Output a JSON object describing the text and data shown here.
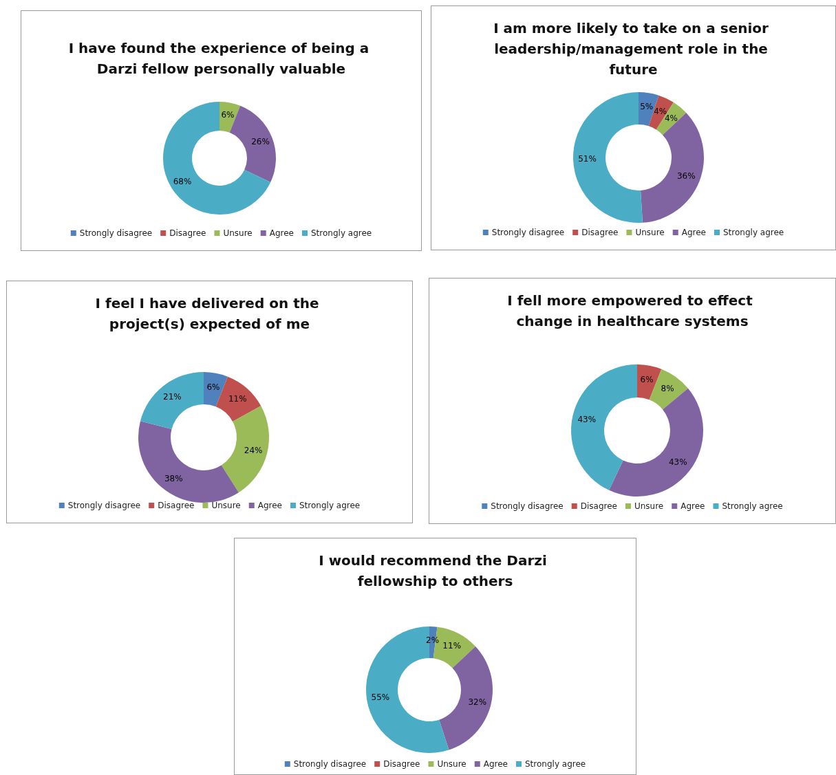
{
  "chart_data": [
    {
      "type": "donut",
      "title": "I have found the experience of being a Darzi fellow personally valuable",
      "categories": [
        "Strongly disagree",
        "Disagree",
        "Unsure",
        "Agree",
        "Strongly agree"
      ],
      "values": [
        0,
        0,
        6,
        26,
        68
      ],
      "value_labels": [
        null,
        null,
        "6%",
        "26%",
        "68%"
      ],
      "colors": [
        "#4f81bd",
        "#c0504d",
        "#9bbb59",
        "#8064a2",
        "#4bacc6"
      ],
      "legend": "bottom"
    },
    {
      "type": "donut",
      "title": "I am more likely to take on a senior leadership/management role in the future",
      "categories": [
        "Strongly disagree",
        "Disagree",
        "Unsure",
        "Agree",
        "Strongly agree"
      ],
      "values": [
        5,
        4,
        4,
        36,
        51
      ],
      "value_labels": [
        "5%",
        "4%",
        "4%",
        "36%",
        "51%"
      ],
      "colors": [
        "#4f81bd",
        "#c0504d",
        "#9bbb59",
        "#8064a2",
        "#4bacc6"
      ],
      "legend": "bottom"
    },
    {
      "type": "donut",
      "title": "I feel I have delivered on the project(s) expected of me",
      "categories": [
        "Strongly disagree",
        "Disagree",
        "Unsure",
        "Agree",
        "Strongly agree"
      ],
      "values": [
        6,
        11,
        24,
        38,
        21
      ],
      "value_labels": [
        "6%",
        "11%",
        "24%",
        "38%",
        "21%"
      ],
      "colors": [
        "#4f81bd",
        "#c0504d",
        "#9bbb59",
        "#8064a2",
        "#4bacc6"
      ],
      "legend": "bottom"
    },
    {
      "type": "donut",
      "title": "I fell more empowered to effect change in healthcare systems",
      "categories": [
        "Strongly disagree",
        "Disagree",
        "Unsure",
        "Agree",
        "Strongly agree"
      ],
      "values": [
        0,
        6,
        8,
        43,
        43
      ],
      "value_labels": [
        null,
        "6%",
        "8%",
        "43%",
        "43%"
      ],
      "colors": [
        "#4f81bd",
        "#c0504d",
        "#9bbb59",
        "#8064a2",
        "#4bacc6"
      ],
      "legend": "bottom"
    },
    {
      "type": "donut",
      "title": "I would recommend the Darzi fellowship to others",
      "categories": [
        "Strongly disagree",
        "Disagree",
        "Unsure",
        "Agree",
        "Strongly agree"
      ],
      "values": [
        2,
        0,
        11,
        32,
        55
      ],
      "value_labels": [
        "2%",
        null,
        "11%",
        "32%",
        "55%"
      ],
      "colors": [
        "#4f81bd",
        "#c0504d",
        "#9bbb59",
        "#8064a2",
        "#4bacc6"
      ],
      "legend": "bottom"
    }
  ]
}
